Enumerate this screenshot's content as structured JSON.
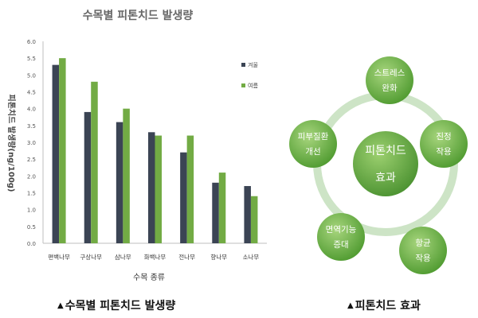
{
  "chart_data": {
    "type": "bar",
    "title": "수목별 피톤치드 발생량",
    "xlabel": "수목 종류",
    "ylabel": "피톤치드 발생량(ng/100g)",
    "ylim": [
      0,
      6
    ],
    "yticks": [
      "0.0",
      "0.5",
      "1.0",
      "1.5",
      "2.0",
      "2.5",
      "3.0",
      "3.5",
      "4.0",
      "4.5",
      "5.0",
      "5.5",
      "6.0"
    ],
    "categories": [
      "편백나무",
      "구상나무",
      "삼나무",
      "화백나무",
      "전나무",
      "향나무",
      "소나무"
    ],
    "series": [
      {
        "name": "겨울",
        "color": "#3b4454",
        "values": [
          5.3,
          3.9,
          3.6,
          3.3,
          2.7,
          1.8,
          1.7
        ]
      },
      {
        "name": "여름",
        "color": "#72ab44",
        "values": [
          5.5,
          4.8,
          4.0,
          3.2,
          3.2,
          2.1,
          1.4
        ]
      }
    ],
    "grid": false,
    "legend_position": "right"
  },
  "diagram": {
    "center": "피톤치드\n효과",
    "nodes": [
      "스트레스\n완화",
      "진정\n작용",
      "항균\n작용",
      "면역기능\n증대",
      "피부질환\n개선"
    ],
    "colors": {
      "ring": "#cde4c6",
      "node_light": "#a7d57d",
      "node_dark": "#4e9a2f",
      "center_light": "#9cd06f",
      "center_dark": "#4a9130"
    }
  },
  "captions": {
    "left": "수목별 피톤치드 발생량",
    "right": "피톤치드 효과",
    "marker": "▲"
  }
}
